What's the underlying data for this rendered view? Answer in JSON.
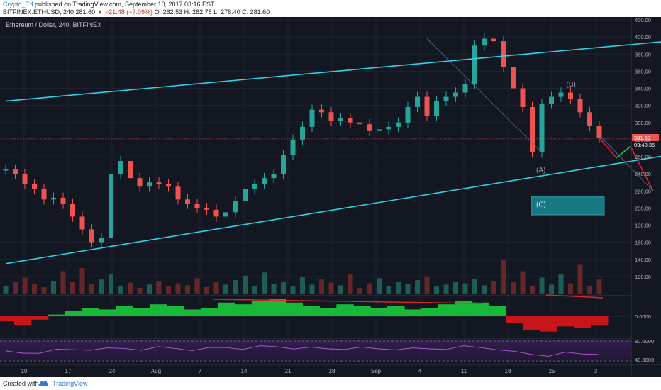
{
  "header": {
    "author": "Crypto_Ed",
    "published": "published on TradingView.com, September 10, 2017 03:16 EST",
    "symbol": "BITFINEX:ETHUSD, 240",
    "price": "281.60",
    "change": "▼ −21.48 (−7.09%)",
    "ohlc": "O: 282.53 H: 282.76 L: 278.40 C: 281.60"
  },
  "footer": {
    "created_with": "Created with",
    "brand": "TradingView"
  },
  "chart_data": {
    "type": "line",
    "title": "Ethereum / Dollar, 240, BITFINEX",
    "x_tick_labels": [
      "10",
      "17",
      "24",
      "Aug",
      "7",
      "14",
      "21",
      "28",
      "Sep",
      "4",
      "11",
      "18",
      "25",
      "3"
    ],
    "ylim": [
      100,
      420
    ],
    "y_tick_labels": [
      "420.00",
      "400.00",
      "380.00",
      "360.00",
      "340.00",
      "320.00",
      "300.00",
      "280.00",
      "260.00",
      "240.00",
      "220.00",
      "200.00",
      "180.00",
      "160.00",
      "140.00",
      "120.00"
    ],
    "series": [
      {
        "values": [
          245,
          240,
          228,
          222,
          210,
          212,
          205,
          190,
          175,
          160,
          165,
          240,
          255,
          235,
          225,
          230,
          228,
          225,
          210,
          205,
          200,
          198,
          190,
          195,
          208,
          222,
          228,
          235,
          240,
          262,
          280,
          295,
          315,
          312,
          302,
          305,
          300,
          298,
          290,
          292,
          295,
          300,
          318,
          330,
          308,
          325,
          330,
          335,
          345,
          390,
          398,
          395,
          365,
          340,
          318,
          265,
          322,
          330,
          335,
          328,
          312,
          296,
          282
        ]
      }
    ],
    "current_price": {
      "label": "281.60",
      "countdown": "03:43:35",
      "value": 281.6
    },
    "channel": {
      "upper": [
        [
          0,
          325
        ],
        [
          79,
          405
        ]
      ],
      "lower": [
        [
          0,
          135
        ],
        [
          120,
          355
        ]
      ]
    },
    "downtrend": [
      [
        79,
        395
      ],
      [
        128,
        213
      ]
    ],
    "wave_labels": [
      "(A)",
      "(B)",
      "(C)"
    ],
    "target_zone": [
      192,
      213
    ],
    "volume": [
      12,
      18,
      25,
      15,
      10,
      20,
      35,
      18,
      40,
      15,
      22,
      30,
      12,
      17,
      9,
      14,
      20,
      11,
      16,
      13,
      24,
      10,
      18,
      14,
      21,
      28,
      12,
      33,
      15,
      19,
      11,
      26,
      14,
      22,
      17,
      13,
      30,
      9,
      16,
      24,
      12,
      18,
      15,
      21,
      27,
      11,
      14,
      19,
      16,
      23,
      13,
      20,
      52,
      18,
      35,
      12,
      25,
      14,
      30,
      16,
      45,
      12,
      22
    ],
    "macd_histogram": [
      -0.3,
      -0.5,
      -0.2,
      0.1,
      0.3,
      0.5,
      0.4,
      0.6,
      0.5,
      0.7,
      0.6,
      0.4,
      0.5,
      0.8,
      0.7,
      0.9,
      1.0,
      0.8,
      0.6,
      0.5,
      0.7,
      0.6,
      0.5,
      0.6,
      0.4,
      0.5,
      0.7,
      0.9,
      0.8,
      0.6,
      -0.4,
      -0.8,
      -0.9,
      -0.6,
      -0.7,
      -0.5
    ],
    "macd_tick": "0.0000",
    "rsi_ticks": [
      "80.0000",
      "40.0000"
    ]
  }
}
